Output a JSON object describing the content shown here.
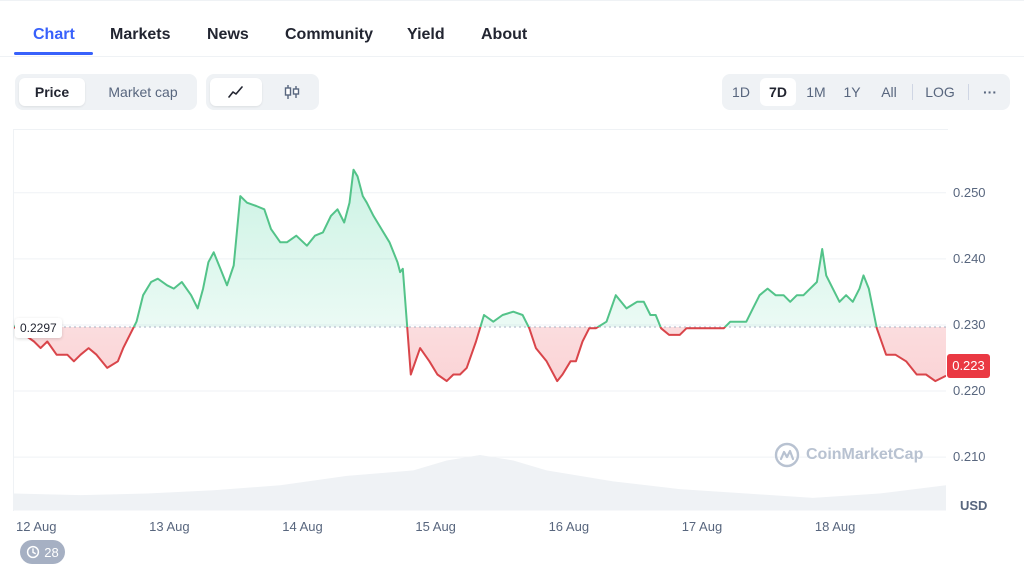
{
  "nav": {
    "tabs": [
      {
        "label": "Chart",
        "active": true
      },
      {
        "label": "Markets"
      },
      {
        "label": "News"
      },
      {
        "label": "Community"
      },
      {
        "label": "Yield"
      },
      {
        "label": "About"
      }
    ]
  },
  "toolbar": {
    "metric_tabs": [
      {
        "label": "Price",
        "active": true
      },
      {
        "label": "Market cap"
      }
    ],
    "chart_style_icons": [
      "line-chart-icon",
      "candlestick-icon"
    ],
    "ranges": [
      {
        "label": "1D"
      },
      {
        "label": "7D",
        "active": true
      },
      {
        "label": "1M"
      },
      {
        "label": "1Y"
      },
      {
        "label": "All"
      },
      {
        "label": "LOG"
      }
    ],
    "more_label": "···"
  },
  "colors": {
    "accent": "#3861fb",
    "up": "#16c784",
    "up_line": "#53c389",
    "down": "#ea3943",
    "down_line": "#d9454a",
    "grid": "#eff2f5",
    "volume": "#eff2f5"
  },
  "chart_data": {
    "type": "area",
    "baseline": 0.2297,
    "baseline_label": "0.2297",
    "current_price_label": "0.223",
    "unit": "USD",
    "ylim": [
      0.202,
      0.2595
    ],
    "yticks": [
      {
        "value": 0.21,
        "label": "0.210"
      },
      {
        "value": 0.22,
        "label": "0.220"
      },
      {
        "value": 0.23,
        "label": "0.230"
      },
      {
        "value": 0.24,
        "label": "0.240"
      },
      {
        "value": 0.25,
        "label": "0.250"
      }
    ],
    "xlim": [
      0,
      7
    ],
    "xticks": [
      {
        "value": 0,
        "label": "12 Aug"
      },
      {
        "value": 1,
        "label": "13 Aug"
      },
      {
        "value": 2,
        "label": "14 Aug"
      },
      {
        "value": 3,
        "label": "15 Aug"
      },
      {
        "value": 4,
        "label": "16 Aug"
      },
      {
        "value": 5,
        "label": "17 Aug"
      },
      {
        "value": 6,
        "label": "18 Aug"
      }
    ],
    "grid": true,
    "price_series": {
      "x": [
        0,
        0.03,
        0.08,
        0.15,
        0.2,
        0.25,
        0.32,
        0.4,
        0.45,
        0.5,
        0.56,
        0.62,
        0.7,
        0.78,
        0.82,
        0.87,
        0.92,
        0.97,
        1.03,
        1.08,
        1.15,
        1.2,
        1.26,
        1.33,
        1.38,
        1.42,
        1.46,
        1.5,
        1.55,
        1.6,
        1.65,
        1.7,
        1.75,
        1.82,
        1.88,
        1.93,
        2.0,
        2.05,
        2.12,
        2.2,
        2.26,
        2.32,
        2.38,
        2.43,
        2.48,
        2.52,
        2.55,
        2.58,
        2.62,
        2.65,
        2.7,
        2.76,
        2.82,
        2.88,
        2.9,
        2.92,
        2.98,
        3.05,
        3.12,
        3.18,
        3.25,
        3.3,
        3.35,
        3.4,
        3.47,
        3.53,
        3.6,
        3.67,
        3.75,
        3.82,
        3.87,
        3.92,
        4.0,
        4.08,
        4.12,
        4.18,
        4.22,
        4.27,
        4.32,
        4.37,
        4.45,
        4.52,
        4.6,
        4.68,
        4.73,
        4.78,
        4.82,
        4.86,
        4.92,
        5.0,
        5.05,
        5.1,
        5.17,
        5.22,
        5.28,
        5.33,
        5.38,
        5.44,
        5.5,
        5.55,
        5.6,
        5.66,
        5.72,
        5.78,
        5.83,
        5.88,
        5.93,
        5.98,
        6.03,
        6.07,
        6.1,
        6.15,
        6.2,
        6.25,
        6.3,
        6.35,
        6.38,
        6.42,
        6.48,
        6.55,
        6.62,
        6.7,
        6.78,
        6.85,
        6.92,
        7.0
      ],
      "y": [
        0.2295,
        0.2305,
        0.2285,
        0.2275,
        0.2265,
        0.2275,
        0.2255,
        0.2255,
        0.2245,
        0.2255,
        0.2265,
        0.2255,
        0.2235,
        0.2245,
        0.2265,
        0.2285,
        0.2305,
        0.2345,
        0.2365,
        0.237,
        0.236,
        0.2355,
        0.2365,
        0.2345,
        0.2325,
        0.2355,
        0.2395,
        0.241,
        0.2385,
        0.236,
        0.239,
        0.2495,
        0.2485,
        0.248,
        0.2475,
        0.2445,
        0.2425,
        0.2425,
        0.2435,
        0.242,
        0.2435,
        0.244,
        0.2465,
        0.2475,
        0.2455,
        0.2485,
        0.2535,
        0.2525,
        0.2495,
        0.2485,
        0.2465,
        0.2445,
        0.2425,
        0.2395,
        0.238,
        0.2385,
        0.2225,
        0.2265,
        0.2245,
        0.2225,
        0.2215,
        0.2225,
        0.2225,
        0.2235,
        0.2275,
        0.2315,
        0.2305,
        0.2315,
        0.232,
        0.2315,
        0.2295,
        0.2265,
        0.2245,
        0.2215,
        0.2225,
        0.2245,
        0.2245,
        0.2275,
        0.2295,
        0.2295,
        0.2305,
        0.2345,
        0.2325,
        0.2335,
        0.2335,
        0.2315,
        0.2315,
        0.2295,
        0.2285,
        0.2285,
        0.2295,
        0.2295,
        0.2295,
        0.2295,
        0.2295,
        0.2295,
        0.2305,
        0.2305,
        0.2305,
        0.2325,
        0.2345,
        0.2355,
        0.2345,
        0.2345,
        0.2335,
        0.2345,
        0.2345,
        0.2355,
        0.2365,
        0.2415,
        0.2375,
        0.2355,
        0.2335,
        0.2345,
        0.2335,
        0.2355,
        0.2375,
        0.2355,
        0.2295,
        0.2255,
        0.2255,
        0.2245,
        0.2225,
        0.2225,
        0.2215,
        0.2223
      ]
    },
    "volume_series": {
      "x": [
        0,
        0.5,
        1,
        1.5,
        2,
        2.5,
        3,
        3.25,
        3.5,
        3.75,
        4,
        4.5,
        5,
        5.5,
        6,
        6.5,
        7
      ],
      "relative": [
        0.3,
        0.27,
        0.3,
        0.36,
        0.45,
        0.62,
        0.72,
        0.9,
        1.0,
        0.9,
        0.72,
        0.52,
        0.38,
        0.3,
        0.22,
        0.3,
        0.45
      ]
    }
  },
  "watermark": {
    "text": "CoinMarketCap"
  },
  "history": {
    "count": "28"
  }
}
